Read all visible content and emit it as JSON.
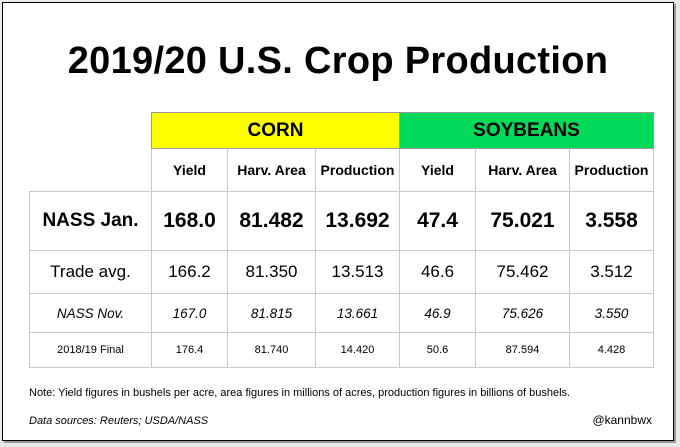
{
  "title": "2019/20 U.S. Crop Production",
  "groups": {
    "corn": "CORN",
    "soybeans": "SOYBEANS"
  },
  "group_colors": {
    "corn": "#ffff00",
    "soybeans": "#00d95a"
  },
  "columns": [
    "Yield",
    "Harv. Area",
    "Production",
    "Yield",
    "Harv. Area",
    "Production"
  ],
  "rows": [
    {
      "label": "NASS Jan.",
      "values": [
        "168.0",
        "81.482",
        "13.692",
        "47.4",
        "75.021",
        "3.558"
      ]
    },
    {
      "label": "Trade avg.",
      "values": [
        "166.2",
        "81.350",
        "13.513",
        "46.6",
        "75.462",
        "3.512"
      ]
    },
    {
      "label": "NASS Nov.",
      "values": [
        "167.0",
        "81.815",
        "13.661",
        "46.9",
        "75.626",
        "3.550"
      ]
    },
    {
      "label": "2018/19 Final",
      "values": [
        "176.4",
        "81.740",
        "14.420",
        "50.6",
        "87.594",
        "4.428"
      ]
    }
  ],
  "note": "Note: Yield figures in bushels per acre, area figures in millions of acres, production figures in billions of bushels.",
  "source": "Data sources: Reuters; USDA/NASS",
  "handle": "@kannbwx"
}
